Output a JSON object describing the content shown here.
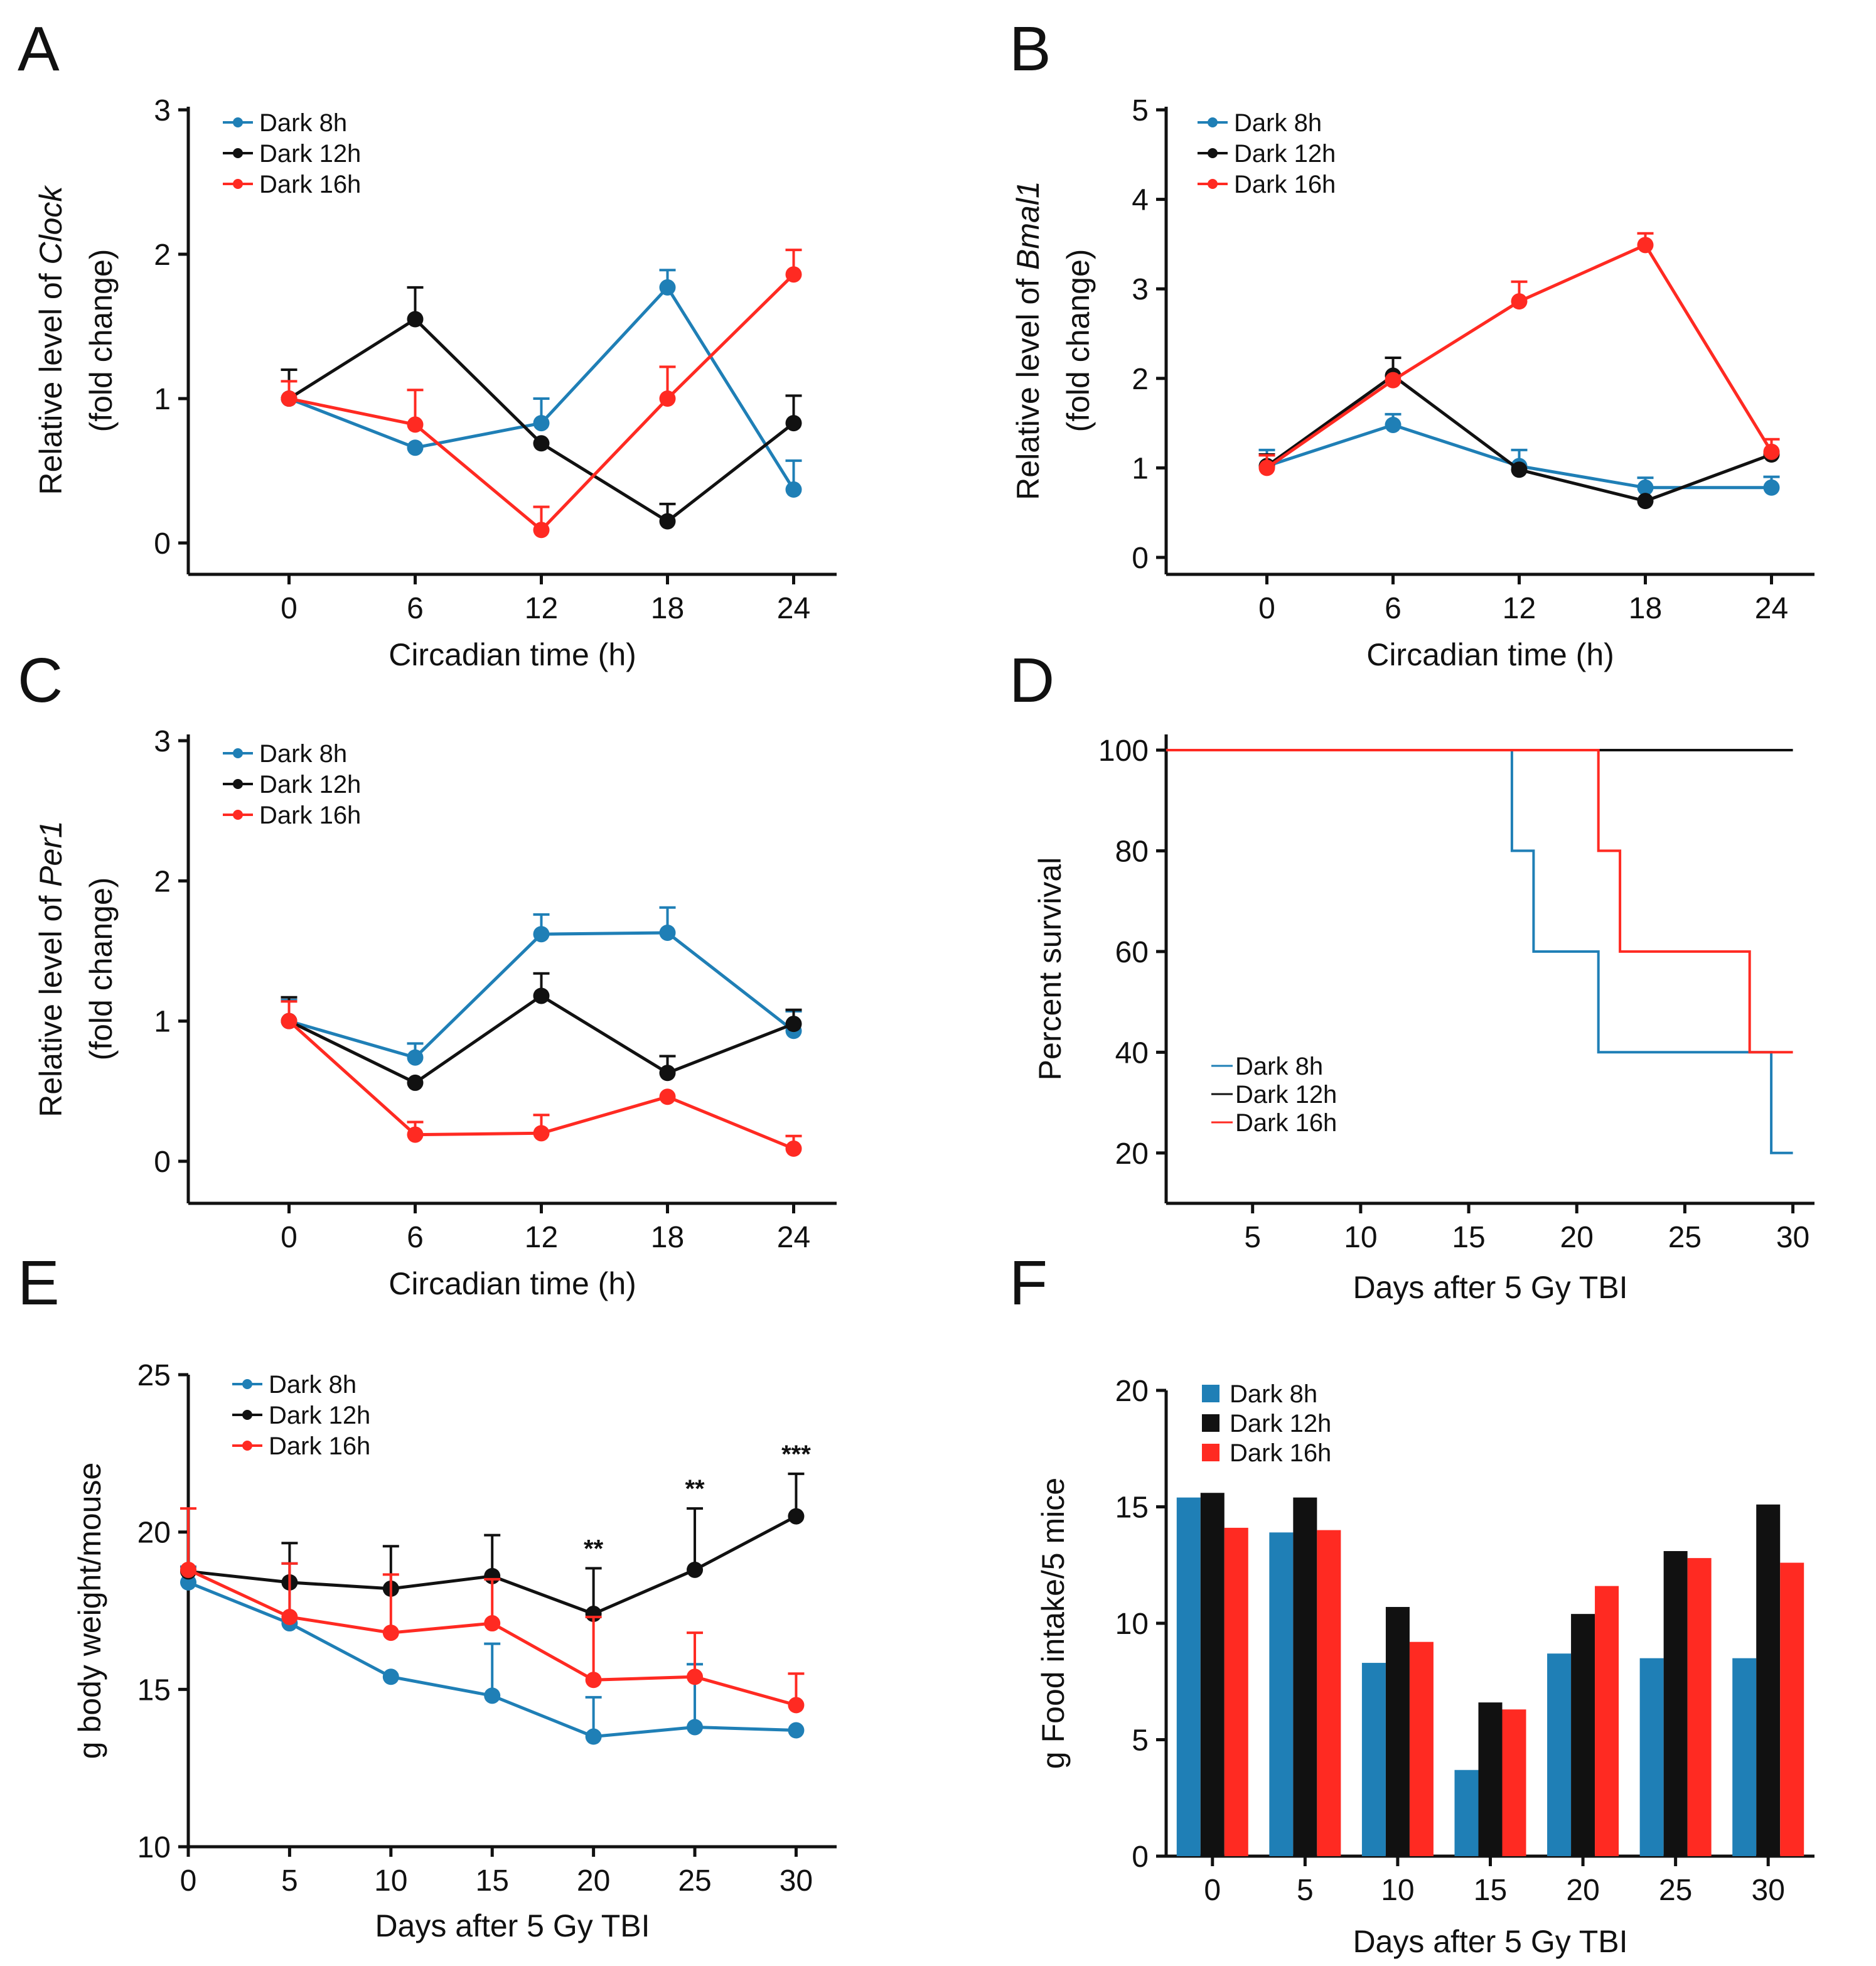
{
  "colors": {
    "blue": "#1f7fb6",
    "black": "#111111",
    "red": "#ff2a22"
  },
  "chart_data": [
    {
      "panel": "A",
      "type": "line",
      "xlabel": "Circadian time (h)",
      "ylabel_lines": [
        [
          "Relative level of ",
          "Clock"
        ],
        [
          "(fold change)",
          ""
        ]
      ],
      "xticks": [
        0,
        6,
        12,
        18,
        24
      ],
      "yticks": [
        0,
        1,
        2,
        3
      ],
      "xlim": [
        -3,
        27
      ],
      "ylim": [
        -0.1,
        3
      ],
      "series": [
        {
          "name": "Dark 8h",
          "color": "blue",
          "x": [
            0,
            6,
            12,
            18,
            24
          ],
          "y": [
            1.0,
            0.66,
            0.83,
            1.77,
            0.37
          ],
          "err": [
            0.0,
            0.0,
            0.17,
            0.12,
            0.2
          ]
        },
        {
          "name": "Dark 12h",
          "color": "black",
          "x": [
            0,
            6,
            12,
            18,
            24
          ],
          "y": [
            1.0,
            1.55,
            0.69,
            0.15,
            0.83
          ],
          "err": [
            0.2,
            0.22,
            0.0,
            0.12,
            0.19
          ]
        },
        {
          "name": "Dark 16h",
          "color": "red",
          "x": [
            0,
            6,
            12,
            18,
            24
          ],
          "y": [
            1.0,
            0.82,
            0.09,
            1.0,
            1.86
          ],
          "err": [
            0.12,
            0.24,
            0.16,
            0.22,
            0.17
          ]
        }
      ]
    },
    {
      "panel": "B",
      "type": "line",
      "xlabel": "Circadian time (h)",
      "ylabel_lines": [
        [
          "Relative level of ",
          "Bmal1"
        ],
        [
          "(fold change)",
          ""
        ]
      ],
      "xticks": [
        0,
        6,
        12,
        18,
        24
      ],
      "yticks": [
        0,
        1,
        2,
        3,
        4,
        5
      ],
      "xlim": [
        -3,
        27
      ],
      "ylim": [
        0,
        5
      ],
      "series": [
        {
          "name": "Dark 8h",
          "color": "blue",
          "x": [
            0,
            6,
            12,
            18,
            24
          ],
          "y": [
            1.02,
            1.48,
            1.02,
            0.78,
            0.78
          ],
          "err": [
            0.18,
            0.12,
            0.18,
            0.11,
            0.12
          ]
        },
        {
          "name": "Dark 12h",
          "color": "black",
          "x": [
            0,
            6,
            12,
            18,
            24
          ],
          "y": [
            1.02,
            2.03,
            0.98,
            0.63,
            1.15
          ],
          "err": [
            0.13,
            0.2,
            0.0,
            0.0,
            0.0
          ]
        },
        {
          "name": "Dark 16h",
          "color": "red",
          "x": [
            0,
            6,
            12,
            18,
            24
          ],
          "y": [
            1.0,
            1.98,
            2.86,
            3.49,
            1.18
          ],
          "err": [
            0.14,
            0.0,
            0.22,
            0.13,
            0.14
          ]
        }
      ]
    },
    {
      "panel": "C",
      "type": "line",
      "xlabel": "Circadian time (h)",
      "ylabel_lines": [
        [
          "Relative level of ",
          "Per1"
        ],
        [
          "(fold change)",
          ""
        ]
      ],
      "xticks": [
        0,
        6,
        12,
        18,
        24
      ],
      "yticks": [
        0,
        1,
        2,
        3
      ],
      "xlim": [
        -3,
        27
      ],
      "ylim": [
        -0.3,
        3
      ],
      "series": [
        {
          "name": "Dark 8h",
          "color": "blue",
          "x": [
            0,
            6,
            12,
            18,
            24
          ],
          "y": [
            1.0,
            0.74,
            1.62,
            1.63,
            0.93
          ],
          "err": [
            0.15,
            0.1,
            0.14,
            0.18,
            0.14
          ]
        },
        {
          "name": "Dark 12h",
          "color": "black",
          "x": [
            0,
            6,
            12,
            18,
            24
          ],
          "y": [
            1.0,
            0.56,
            1.18,
            0.63,
            0.98
          ],
          "err": [
            0.17,
            0.0,
            0.16,
            0.12,
            0.1
          ]
        },
        {
          "name": "Dark 16h",
          "color": "red",
          "x": [
            0,
            6,
            12,
            18,
            24
          ],
          "y": [
            1.0,
            0.19,
            0.2,
            0.46,
            0.09
          ],
          "err": [
            0.14,
            0.09,
            0.13,
            0.0,
            0.09
          ]
        }
      ]
    },
    {
      "panel": "D",
      "type": "step",
      "xlabel": "Days after 5 Gy TBI",
      "ylabel_lines": [
        [
          "Percent survival",
          ""
        ]
      ],
      "xticks": [
        5,
        10,
        15,
        20,
        25,
        30
      ],
      "yticks": [
        20,
        40,
        60,
        80,
        100
      ],
      "xlim": [
        1,
        31
      ],
      "ylim": [
        10,
        100
      ],
      "series": [
        {
          "name": "Dark 8h",
          "color": "blue",
          "x": [
            1,
            17,
            17,
            18,
            18,
            21,
            21,
            29,
            29,
            30
          ],
          "y": [
            100,
            100,
            80,
            80,
            60,
            60,
            40,
            40,
            20,
            20
          ]
        },
        {
          "name": "Dark 12h",
          "color": "black",
          "x": [
            1,
            30
          ],
          "y": [
            100,
            100
          ]
        },
        {
          "name": "Dark 16h",
          "color": "red",
          "x": [
            1,
            21,
            21,
            22,
            22,
            28,
            28,
            30
          ],
          "y": [
            100,
            100,
            80,
            80,
            60,
            60,
            40,
            40
          ]
        }
      ]
    },
    {
      "panel": "E",
      "type": "line",
      "xlabel": "Days after 5 Gy TBI",
      "ylabel_lines": [
        [
          "g body weight/mouse",
          ""
        ]
      ],
      "xticks": [
        0,
        5,
        10,
        15,
        20,
        25,
        30
      ],
      "yticks": [
        10,
        15,
        20,
        25
      ],
      "xlim": [
        0,
        32
      ],
      "ylim": [
        10,
        25
      ],
      "annotations": [
        {
          "x": 20,
          "y": 18.85,
          "text": "**"
        },
        {
          "x": 25,
          "y": 20.75,
          "text": "**"
        },
        {
          "x": 30,
          "y": 21.85,
          "text": "***"
        }
      ],
      "series": [
        {
          "name": "Dark 8h",
          "color": "blue",
          "x": [
            0,
            5,
            10,
            15,
            20,
            25,
            30
          ],
          "y": [
            18.4,
            17.1,
            15.4,
            14.8,
            13.5,
            13.8,
            13.7
          ],
          "err": [
            0.5,
            1.9,
            0.0,
            1.65,
            1.25,
            2.0,
            0.0
          ]
        },
        {
          "name": "Dark 12h",
          "color": "black",
          "x": [
            0,
            5,
            10,
            15,
            20,
            25,
            30
          ],
          "y": [
            18.75,
            18.4,
            18.2,
            18.6,
            17.4,
            18.8,
            20.5
          ],
          "err": [
            0.0,
            1.25,
            1.35,
            1.3,
            1.45,
            1.95,
            1.35
          ]
        },
        {
          "name": "Dark 16h",
          "color": "red",
          "x": [
            0,
            5,
            10,
            15,
            20,
            25,
            30
          ],
          "y": [
            18.8,
            17.3,
            16.8,
            17.1,
            15.3,
            15.4,
            14.5
          ],
          "err": [
            1.95,
            1.7,
            1.85,
            1.4,
            2.0,
            1.4,
            1.0
          ]
        }
      ]
    },
    {
      "panel": "F",
      "type": "bar",
      "xlabel": "Days after 5 Gy TBI",
      "ylabel_lines": [
        [
          "g Food intake/5 mice",
          ""
        ]
      ],
      "categories": [
        "0",
        "5",
        "10",
        "15",
        "20",
        "25",
        "30"
      ],
      "yticks": [
        0,
        5,
        10,
        15,
        20
      ],
      "ylim": [
        0,
        20
      ],
      "series": [
        {
          "name": "Dark 8h",
          "color": "blue",
          "values": [
            15.4,
            13.9,
            8.3,
            3.7,
            8.7,
            8.5,
            8.5
          ]
        },
        {
          "name": "Dark 12h",
          "color": "black",
          "values": [
            15.6,
            15.4,
            10.7,
            6.6,
            10.4,
            13.1,
            15.1
          ]
        },
        {
          "name": "Dark 16h",
          "color": "red",
          "values": [
            14.1,
            14.0,
            9.2,
            6.3,
            11.6,
            12.8,
            12.6
          ]
        }
      ]
    }
  ]
}
